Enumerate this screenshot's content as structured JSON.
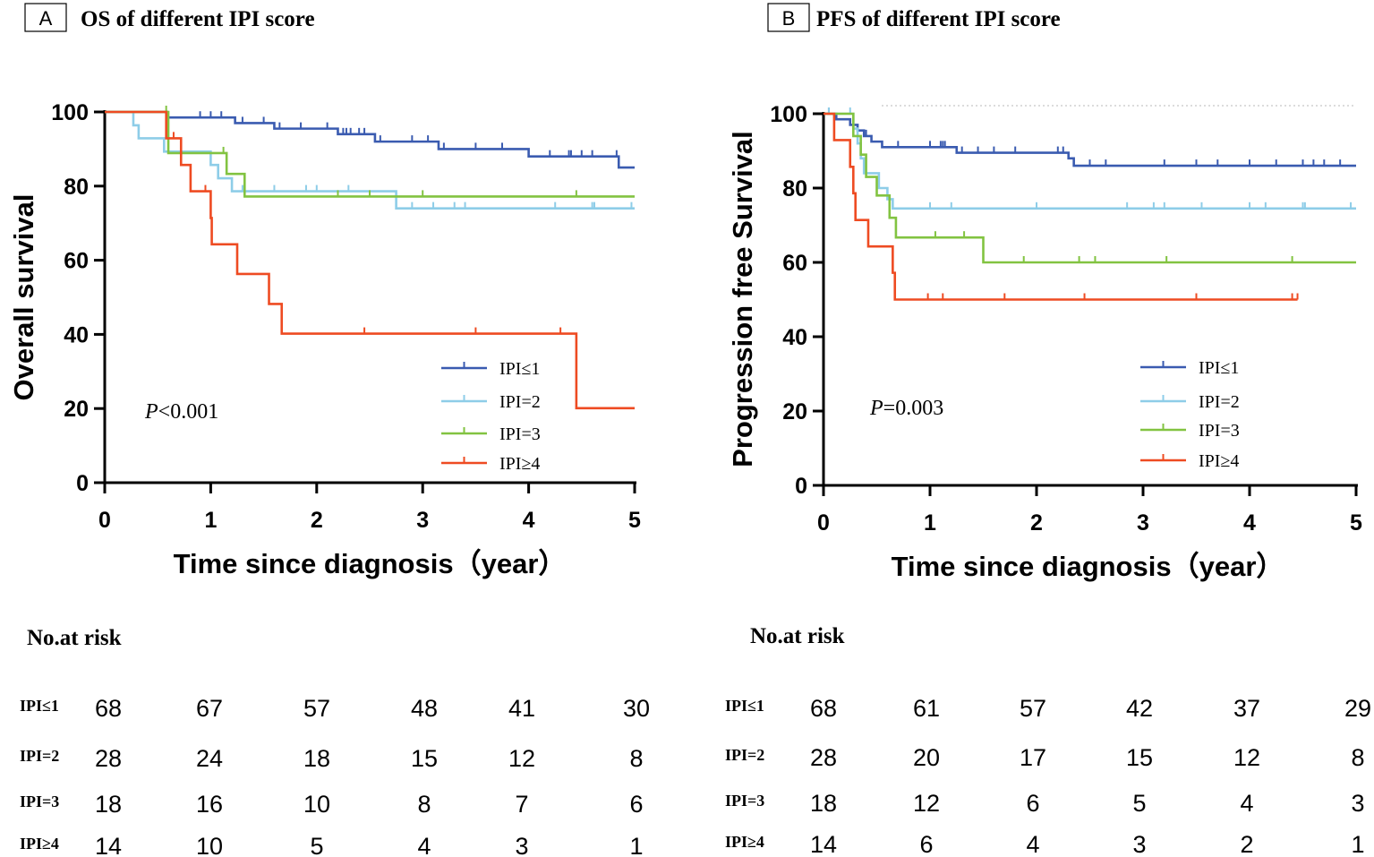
{
  "chart_data": [
    {
      "type": "line",
      "panel_label": "A",
      "title": "OS of different IPI score",
      "xlabel": "Time since diagnosis（year）",
      "ylabel": "Overall survival",
      "xlim": [
        0,
        5
      ],
      "ylim": [
        0,
        100
      ],
      "xticks": [
        "0",
        "1",
        "2",
        "3",
        "4",
        "5"
      ],
      "yticks": [
        "0",
        "20",
        "40",
        "60",
        "80",
        "100"
      ],
      "p_prefix": "P",
      "p_rest": "<0.001",
      "legend_position": "lower-right",
      "series": [
        {
          "name": "IPI≤1",
          "legend_label": "IPI≤1",
          "color": "#3a5bb0",
          "steps": [
            [
              0,
              100
            ],
            [
              0.59,
              98.5
            ],
            [
              1.23,
              97
            ],
            [
              1.6,
              95.5
            ],
            [
              2.2,
              94
            ],
            [
              2.55,
              92
            ],
            [
              3.15,
              90
            ],
            [
              4.0,
              88
            ],
            [
              4.85,
              85
            ],
            [
              5,
              85
            ]
          ],
          "censors": [
            0.6,
            0.9,
            1.0,
            1.1,
            1.3,
            1.5,
            1.65,
            1.85,
            2.1,
            2.2,
            2.25,
            2.28,
            2.32,
            2.4,
            2.45,
            2.6,
            2.9,
            3.05,
            3.2,
            3.5,
            3.75,
            4.2,
            4.38,
            4.4,
            4.5,
            4.6,
            4.83
          ]
        },
        {
          "name": "IPI=2",
          "legend_label": "IPI=2",
          "color": "#8ecde8",
          "steps": [
            [
              0,
              100
            ],
            [
              0.27,
              96.4
            ],
            [
              0.32,
              92.9
            ],
            [
              0.56,
              89.3
            ],
            [
              1.0,
              85.7
            ],
            [
              1.07,
              82.1
            ],
            [
              1.2,
              78.6
            ],
            [
              2.75,
              74
            ],
            [
              5,
              74
            ]
          ],
          "censors": [
            1.3,
            1.6,
            1.9,
            2.0,
            2.3,
            2.9,
            3.1,
            3.3,
            3.4,
            4.25,
            4.6,
            4.62,
            4.97
          ]
        },
        {
          "name": "IPI=3",
          "legend_label": "IPI=3",
          "color": "#82c341",
          "steps": [
            [
              0,
              100
            ],
            [
              0.6,
              88.9
            ],
            [
              1.15,
              83.3
            ],
            [
              1.32,
              77.2
            ],
            [
              5,
              77.2
            ]
          ],
          "censors": [
            0.58,
            1.12,
            2.2,
            2.5,
            3.0,
            4.45
          ]
        },
        {
          "name": "IPI≥4",
          "legend_label": "IPI≥4",
          "color": "#ee4b22",
          "steps": [
            [
              0,
              100
            ],
            [
              0.58,
              92.9
            ],
            [
              0.72,
              85.7
            ],
            [
              0.81,
              78.6
            ],
            [
              1.0,
              71.4
            ],
            [
              1.01,
              64.3
            ],
            [
              1.25,
              56.3
            ],
            [
              1.55,
              48.2
            ],
            [
              1.67,
              40.2
            ],
            [
              4.45,
              20.1
            ],
            [
              5,
              20.1
            ]
          ],
          "censors": [
            0.65,
            0.95,
            1.25,
            1.55,
            2.45,
            3.5,
            4.3
          ]
        }
      ],
      "risk_table": {
        "title": "No.at risk",
        "times": [
          "0",
          "1",
          "2",
          "3",
          "4",
          "5"
        ],
        "rows": [
          {
            "label": "IPI≤1",
            "values": [
              "68",
              "67",
              "57",
              "48",
              "41",
              "30"
            ]
          },
          {
            "label": "IPI=2",
            "values": [
              "28",
              "24",
              "18",
              "15",
              "12",
              "8"
            ]
          },
          {
            "label": "IPI=3",
            "values": [
              "18",
              "16",
              "10",
              "8",
              "7",
              "6"
            ]
          },
          {
            "label": "IPI≥4",
            "values": [
              "14",
              "10",
              "5",
              "4",
              "3",
              "1"
            ]
          }
        ]
      }
    },
    {
      "type": "line",
      "panel_label": "B",
      "title": "PFS of different IPI score",
      "xlabel": "Time since diagnosis（year）",
      "ylabel": "Progression free Survival",
      "xlim": [
        0,
        5
      ],
      "ylim": [
        0,
        100
      ],
      "xticks": [
        "0",
        "1",
        "2",
        "3",
        "4",
        "5"
      ],
      "yticks": [
        "0",
        "20",
        "40",
        "60",
        "80",
        "100"
      ],
      "p_prefix": "P",
      "p_rest": "=0.003",
      "legend_position": "lower-right",
      "series": [
        {
          "name": "IPI≤1",
          "legend_label": "IPI≤1",
          "color": "#3a5bb0",
          "steps": [
            [
              0,
              100
            ],
            [
              0.12,
              98.5
            ],
            [
              0.25,
              97
            ],
            [
              0.32,
              95.5
            ],
            [
              0.38,
              94
            ],
            [
              0.45,
              92.5
            ],
            [
              0.55,
              91
            ],
            [
              1.25,
              89.5
            ],
            [
              2.3,
              88
            ],
            [
              2.35,
              86
            ],
            [
              5,
              86
            ]
          ],
          "censors": [
            0.05,
            0.4,
            0.7,
            1.0,
            1.1,
            1.12,
            1.14,
            1.3,
            1.45,
            1.6,
            1.8,
            2.2,
            2.25,
            2.5,
            2.65,
            3.2,
            3.5,
            3.7,
            4.0,
            4.25,
            4.5,
            4.6,
            4.7,
            4.85
          ]
        },
        {
          "name": "IPI=2",
          "legend_label": "IPI=2",
          "color": "#8ecde8",
          "steps": [
            [
              0,
              100
            ],
            [
              0.28,
              96
            ],
            [
              0.32,
              92
            ],
            [
              0.35,
              88
            ],
            [
              0.38,
              84
            ],
            [
              0.52,
              80
            ],
            [
              0.6,
              77
            ],
            [
              0.65,
              74.5
            ],
            [
              5,
              74.5
            ]
          ],
          "censors": [
            0.05,
            0.25,
            1.0,
            1.2,
            2.0,
            2.85,
            3.1,
            3.2,
            3.55,
            4.0,
            4.15,
            4.5,
            4.52,
            4.95
          ]
        },
        {
          "name": "IPI=3",
          "legend_label": "IPI=3",
          "color": "#82c341",
          "steps": [
            [
              0,
              100
            ],
            [
              0.28,
              94
            ],
            [
              0.35,
              89
            ],
            [
              0.4,
              83
            ],
            [
              0.5,
              78
            ],
            [
              0.62,
              72
            ],
            [
              0.68,
              66.7
            ],
            [
              1.5,
              60
            ],
            [
              5,
              60
            ]
          ],
          "censors": [
            0.28,
            1.05,
            1.32,
            1.88,
            2.4,
            2.55,
            3.22,
            4.4
          ]
        },
        {
          "name": "IPI≥4",
          "legend_label": "IPI≥4",
          "color": "#ee4b22",
          "steps": [
            [
              0,
              100
            ],
            [
              0.1,
              92.9
            ],
            [
              0.25,
              85.7
            ],
            [
              0.28,
              78.6
            ],
            [
              0.3,
              71.4
            ],
            [
              0.42,
              64.3
            ],
            [
              0.65,
              57.2
            ],
            [
              0.67,
              50
            ],
            [
              4.45,
              50
            ]
          ],
          "censors": [
            0.98,
            1.12,
            1.7,
            2.45,
            3.5,
            4.4,
            4.45
          ]
        }
      ],
      "risk_table": {
        "title": "No.at risk",
        "times": [
          "0",
          "1",
          "2",
          "3",
          "4",
          "5"
        ],
        "rows": [
          {
            "label": "IPI≤1",
            "values": [
              "68",
              "61",
              "57",
              "42",
              "37",
              "29"
            ]
          },
          {
            "label": "IPI=2",
            "values": [
              "28",
              "20",
              "17",
              "15",
              "12",
              "8"
            ]
          },
          {
            "label": "IPI=3",
            "values": [
              "18",
              "12",
              "6",
              "5",
              "4",
              "3"
            ]
          },
          {
            "label": "IPI≥4",
            "values": [
              "14",
              "6",
              "4",
              "3",
              "2",
              "1"
            ]
          }
        ]
      }
    }
  ]
}
